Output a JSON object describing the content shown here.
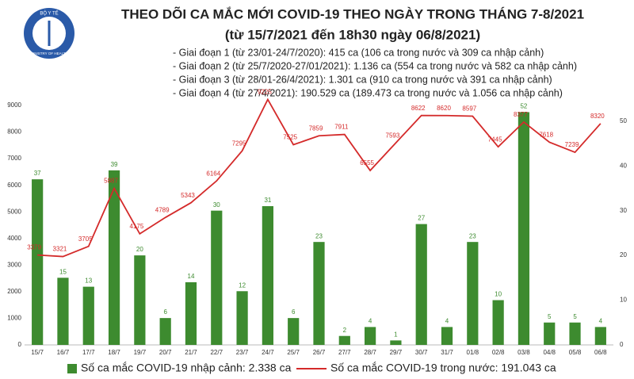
{
  "logo": {
    "top": "BỘ Y TẾ",
    "bottom": "MINISTRY OF HEALTH"
  },
  "chart_data": {
    "type": "combo",
    "title": "THEO DÕI CA MẮC MỚI COVID-19 THEO NGÀY TRONG THÁNG 7-8/2021",
    "subtitle": "(từ 15/7/2021 đến 18h30 ngày 06/8/2021)",
    "annotations": [
      "- Giai đoạn 1 (từ 23/01-24/7/2020): 415 ca (106 ca trong nước và 309 ca nhập cảnh)",
      "- Giai đoạn 2 (từ 25/7/2020-27/01/2021): 1.136 ca (554 ca trong nước và 582 ca nhập cảnh)",
      "- Giai đoạn 3 (từ 28/01-26/4/2021): 1.301 ca (910 ca trong nước và 391 ca nhập cảnh)",
      "- Giai đoạn 4 (từ 27/4/2021): 190.529 ca (189.473 ca trong nước và 1.056 ca nhập cảnh)"
    ],
    "categories": [
      "15/7",
      "16/7",
      "17/7",
      "18/7",
      "19/7",
      "20/7",
      "21/7",
      "22/7",
      "23/7",
      "24/7",
      "25/7",
      "26/7",
      "27/7",
      "28/7",
      "29/7",
      "30/7",
      "31/7",
      "01/8",
      "02/8",
      "03/8",
      "04/8",
      "05/8",
      "06/8"
    ],
    "series": [
      {
        "name": "Số ca mắc COVID-19 nhập cảnh: 2.338 ca",
        "type": "bar",
        "axis": "y2",
        "color": "#3d8b2f",
        "values": [
          37,
          15,
          13,
          39,
          20,
          6,
          14,
          30,
          12,
          31,
          6,
          23,
          2,
          4,
          1,
          27,
          4,
          23,
          10,
          52,
          5,
          5,
          4
        ]
      },
      {
        "name": "Số ca mắc COVID-19 trong nước: 191.043 ca",
        "type": "line",
        "color": "#d42a2a",
        "values": [
          3379,
          3321,
          3705,
          5887,
          4175,
          4789,
          5343,
          6164,
          7295,
          9225,
          7525,
          7859,
          7911,
          6555,
          7593,
          8622,
          8620,
          8597,
          7445,
          8377,
          7618,
          7239,
          8320
        ]
      }
    ],
    "ylim": [
      0,
      9000
    ],
    "yticks": [
      0,
      1000,
      2000,
      3000,
      4000,
      5000,
      6000,
      7000,
      8000,
      9000
    ],
    "y2lim": [
      0,
      53.5
    ],
    "y2ticks": [
      0,
      10,
      20,
      30,
      40,
      50
    ],
    "grid": false
  }
}
